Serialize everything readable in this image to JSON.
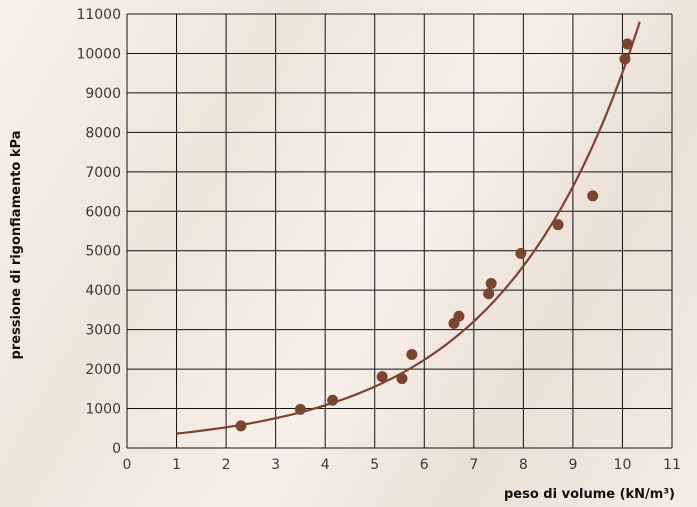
{
  "chart_data": {
    "type": "scatter",
    "xlabel": "peso di volume (kN/m³)",
    "ylabel": "pressione di rigonfiamento kPa",
    "xlim": [
      0,
      11
    ],
    "ylim": [
      0,
      11000
    ],
    "x_ticks": [
      "0",
      "1",
      "2",
      "3",
      "4",
      "5",
      "6",
      "7",
      "8",
      "9",
      "10",
      "11"
    ],
    "y_ticks": [
      "0",
      "1000",
      "2000",
      "3000",
      "4000",
      "5000",
      "6000",
      "7000",
      "8000",
      "9000",
      "10000",
      "11000"
    ],
    "grid": true,
    "series": [
      {
        "points": [
          [
            2.3,
            560
          ],
          [
            3.5,
            980
          ],
          [
            4.15,
            1210
          ],
          [
            5.15,
            1810
          ],
          [
            5.55,
            1760
          ],
          [
            5.75,
            2370
          ],
          [
            6.6,
            3160
          ],
          [
            6.7,
            3340
          ],
          [
            7.3,
            3910
          ],
          [
            7.35,
            4170
          ],
          [
            7.95,
            4930
          ],
          [
            8.7,
            5660
          ],
          [
            9.4,
            6390
          ],
          [
            10.05,
            9860
          ],
          [
            10.1,
            10240
          ]
        ]
      }
    ],
    "trend_curve": {
      "kind": "exponential",
      "x_range": [
        1,
        10.35
      ],
      "points": [
        [
          1,
          380
        ],
        [
          4,
          1030
        ],
        [
          7,
          3150
        ],
        [
          10,
          9800
        ]
      ]
    },
    "colors": {
      "point": "#7a4432",
      "curve": "#7a4432",
      "grid": "#111111",
      "tick_text": "#3a3a3a"
    }
  }
}
